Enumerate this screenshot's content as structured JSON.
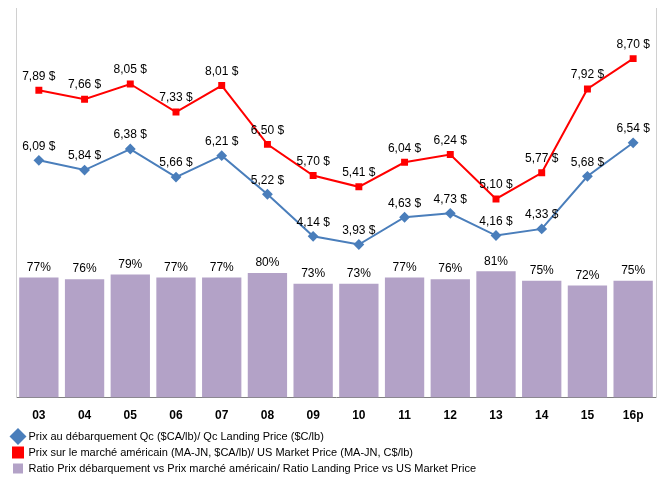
{
  "chart_data": {
    "type": "bar",
    "categories": [
      "03",
      "04",
      "05",
      "06",
      "07",
      "08",
      "09",
      "10",
      "11",
      "12",
      "13",
      "14",
      "15",
      "16p"
    ],
    "series": [
      {
        "name": "Ratio Prix débarquement vs Prix marché américain/ Ratio Landing Price vs US Market Price",
        "type": "bar",
        "color": "#b3a2c7",
        "axis": "y",
        "values": [
          77,
          76,
          79,
          77,
          77,
          80,
          73,
          73,
          77,
          76,
          81,
          75,
          72,
          75
        ],
        "value_labels": [
          "77%",
          "76%",
          "79%",
          "77%",
          "77%",
          "80%",
          "73%",
          "73%",
          "77%",
          "76%",
          "81%",
          "75%",
          "72%",
          "75%"
        ]
      },
      {
        "name": "Prix au débarquement Qc ($CA/lb)/ Qc Landing Price ($C/lb)",
        "type": "line",
        "color": "#4a7ebb",
        "marker": "diamond",
        "axis": "y2",
        "values": [
          6.09,
          5.84,
          6.38,
          5.66,
          6.21,
          5.22,
          4.14,
          3.93,
          4.63,
          4.73,
          4.16,
          4.33,
          5.68,
          6.54
        ],
        "value_labels": [
          "6,09 $",
          "5,84 $",
          "6,38 $",
          "5,66 $",
          "6,21 $",
          "5,22 $",
          "4,14 $",
          "3,93 $",
          "4,63 $",
          "4,73 $",
          "4,16 $",
          "4,33 $",
          "5,68 $",
          "6,54 $"
        ]
      },
      {
        "name": "Prix sur le marché américain (MA-JN, $CA/lb)/ US Market Price (MA-JN, C$/lb)",
        "type": "line",
        "color": "#ff0000",
        "marker": "square",
        "axis": "y2",
        "values": [
          7.89,
          7.66,
          8.05,
          7.33,
          8.01,
          6.5,
          5.7,
          5.41,
          6.04,
          6.24,
          5.1,
          5.77,
          7.92,
          8.7
        ],
        "value_labels": [
          "7,89 $",
          "7,66 $",
          "8,05 $",
          "7,33 $",
          "8,01 $",
          "6,50 $",
          "5,70 $",
          "5,41 $",
          "6,04 $",
          "6,24 $",
          "5,10 $",
          "5,77 $",
          "7,92 $",
          "8,70 $"
        ]
      }
    ],
    "ylim": [
      0,
      250
    ],
    "y2lim": [
      0,
      10
    ],
    "data_labels": true,
    "tick_labels": "x",
    "grid": false,
    "legend": "bottom"
  }
}
